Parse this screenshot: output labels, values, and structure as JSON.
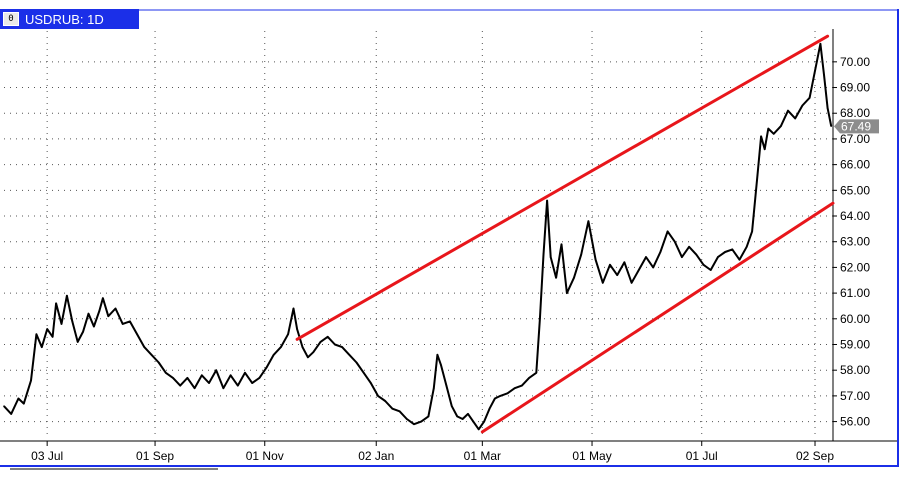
{
  "window": {
    "symbol_label": "USDRUB: 1D",
    "icon_glyph": "0"
  },
  "colors": {
    "title_bar": "#1b2fe8",
    "price_line": "#000000",
    "channel": "#e8161b",
    "last_tag": "#8c8c8c",
    "border": "#1b2fe8"
  },
  "chart_data": {
    "type": "line",
    "title": "USDRUB: 1D",
    "last_price_label": "67.49",
    "xlabel": "",
    "ylabel": "",
    "ylim": [
      55.4,
      71.2
    ],
    "xlim": [
      "2015-06-09",
      "2016-09-12"
    ],
    "y_ticks": [
      "56.00",
      "57.00",
      "58.00",
      "59.00",
      "60.00",
      "61.00",
      "62.00",
      "63.00",
      "64.00",
      "65.00",
      "66.00",
      "67.00",
      "68.00",
      "69.00",
      "70.00"
    ],
    "x_ticks": [
      {
        "label": "03 Jul",
        "date": "2015-07-03"
      },
      {
        "label": "01 Sep",
        "date": "2015-09-01"
      },
      {
        "label": "01 Nov",
        "date": "2015-11-01"
      },
      {
        "label": "02 Jan",
        "date": "2016-01-02"
      },
      {
        "label": "01 Mar",
        "date": "2016-03-01"
      },
      {
        "label": "01 May",
        "date": "2016-05-01"
      },
      {
        "label": "01 Jul",
        "date": "2016-07-01"
      },
      {
        "label": "02 Sep",
        "date": "2016-09-02"
      }
    ],
    "grid": true,
    "series": [
      {
        "points": [
          [
            "2015-06-09",
            56.6
          ],
          [
            "2015-06-13",
            56.3
          ],
          [
            "2015-06-17",
            56.9
          ],
          [
            "2015-06-20",
            56.7
          ],
          [
            "2015-06-24",
            57.6
          ],
          [
            "2015-06-27",
            59.4
          ],
          [
            "2015-06-30",
            58.9
          ],
          [
            "2015-07-03",
            59.6
          ],
          [
            "2015-07-06",
            59.3
          ],
          [
            "2015-07-08",
            60.6
          ],
          [
            "2015-07-11",
            59.8
          ],
          [
            "2015-07-14",
            60.9
          ],
          [
            "2015-07-17",
            59.9
          ],
          [
            "2015-07-20",
            59.1
          ],
          [
            "2015-07-23",
            59.5
          ],
          [
            "2015-07-26",
            60.2
          ],
          [
            "2015-07-29",
            59.7
          ],
          [
            "2015-08-01",
            60.3
          ],
          [
            "2015-08-03",
            60.8
          ],
          [
            "2015-08-06",
            60.1
          ],
          [
            "2015-08-10",
            60.4
          ],
          [
            "2015-08-14",
            59.8
          ],
          [
            "2015-08-18",
            59.9
          ],
          [
            "2015-08-22",
            59.4
          ],
          [
            "2015-08-26",
            58.9
          ],
          [
            "2015-08-30",
            58.6
          ],
          [
            "2015-09-03",
            58.3
          ],
          [
            "2015-09-07",
            57.9
          ],
          [
            "2015-09-11",
            57.7
          ],
          [
            "2015-09-15",
            57.4
          ],
          [
            "2015-09-19",
            57.7
          ],
          [
            "2015-09-23",
            57.3
          ],
          [
            "2015-09-27",
            57.8
          ],
          [
            "2015-10-01",
            57.5
          ],
          [
            "2015-10-05",
            58.0
          ],
          [
            "2015-10-09",
            57.3
          ],
          [
            "2015-10-13",
            57.8
          ],
          [
            "2015-10-17",
            57.4
          ],
          [
            "2015-10-21",
            57.9
          ],
          [
            "2015-10-25",
            57.5
          ],
          [
            "2015-10-29",
            57.7
          ],
          [
            "2015-11-02",
            58.1
          ],
          [
            "2015-11-06",
            58.6
          ],
          [
            "2015-11-10",
            58.9
          ],
          [
            "2015-11-14",
            59.4
          ],
          [
            "2015-11-17",
            60.4
          ],
          [
            "2015-11-19",
            59.6
          ],
          [
            "2015-11-22",
            58.9
          ],
          [
            "2015-11-25",
            58.5
          ],
          [
            "2015-11-28",
            58.7
          ],
          [
            "2015-12-02",
            59.1
          ],
          [
            "2015-12-06",
            59.3
          ],
          [
            "2015-12-10",
            59.0
          ],
          [
            "2015-12-14",
            58.9
          ],
          [
            "2015-12-18",
            58.6
          ],
          [
            "2015-12-22",
            58.3
          ],
          [
            "2015-12-26",
            57.9
          ],
          [
            "2015-12-30",
            57.5
          ],
          [
            "2016-01-03",
            57.0
          ],
          [
            "2016-01-07",
            56.8
          ],
          [
            "2016-01-11",
            56.5
          ],
          [
            "2016-01-15",
            56.4
          ],
          [
            "2016-01-19",
            56.1
          ],
          [
            "2016-01-23",
            55.9
          ],
          [
            "2016-01-27",
            56.0
          ],
          [
            "2016-01-31",
            56.2
          ],
          [
            "2016-02-03",
            57.3
          ],
          [
            "2016-02-05",
            58.6
          ],
          [
            "2016-02-07",
            58.2
          ],
          [
            "2016-02-10",
            57.4
          ],
          [
            "2016-02-13",
            56.6
          ],
          [
            "2016-02-16",
            56.2
          ],
          [
            "2016-02-19",
            56.1
          ],
          [
            "2016-02-22",
            56.3
          ],
          [
            "2016-02-25",
            56.0
          ],
          [
            "2016-02-28",
            55.7
          ],
          [
            "2016-03-02",
            56.0
          ],
          [
            "2016-03-05",
            56.5
          ],
          [
            "2016-03-08",
            56.9
          ],
          [
            "2016-03-11",
            57.0
          ],
          [
            "2016-03-15",
            57.1
          ],
          [
            "2016-03-19",
            57.3
          ],
          [
            "2016-03-23",
            57.4
          ],
          [
            "2016-03-27",
            57.7
          ],
          [
            "2016-03-31",
            57.9
          ],
          [
            "2016-04-02",
            60.0
          ],
          [
            "2016-04-04",
            62.5
          ],
          [
            "2016-04-06",
            64.6
          ],
          [
            "2016-04-08",
            62.4
          ],
          [
            "2016-04-11",
            61.6
          ],
          [
            "2016-04-14",
            62.9
          ],
          [
            "2016-04-17",
            61.0
          ],
          [
            "2016-04-21",
            61.6
          ],
          [
            "2016-04-25",
            62.5
          ],
          [
            "2016-04-29",
            63.8
          ],
          [
            "2016-05-03",
            62.3
          ],
          [
            "2016-05-07",
            61.4
          ],
          [
            "2016-05-11",
            62.1
          ],
          [
            "2016-05-15",
            61.7
          ],
          [
            "2016-05-19",
            62.2
          ],
          [
            "2016-05-23",
            61.4
          ],
          [
            "2016-05-27",
            61.9
          ],
          [
            "2016-05-31",
            62.4
          ],
          [
            "2016-06-04",
            62.0
          ],
          [
            "2016-06-08",
            62.6
          ],
          [
            "2016-06-12",
            63.4
          ],
          [
            "2016-06-16",
            63.0
          ],
          [
            "2016-06-20",
            62.4
          ],
          [
            "2016-06-24",
            62.8
          ],
          [
            "2016-06-28",
            62.5
          ],
          [
            "2016-07-02",
            62.1
          ],
          [
            "2016-07-06",
            61.9
          ],
          [
            "2016-07-10",
            62.4
          ],
          [
            "2016-07-14",
            62.6
          ],
          [
            "2016-07-18",
            62.7
          ],
          [
            "2016-07-22",
            62.3
          ],
          [
            "2016-07-26",
            62.8
          ],
          [
            "2016-07-29",
            63.4
          ],
          [
            "2016-08-01",
            65.6
          ],
          [
            "2016-08-03",
            67.1
          ],
          [
            "2016-08-05",
            66.6
          ],
          [
            "2016-08-07",
            67.4
          ],
          [
            "2016-08-10",
            67.2
          ],
          [
            "2016-08-14",
            67.5
          ],
          [
            "2016-08-18",
            68.1
          ],
          [
            "2016-08-22",
            67.8
          ],
          [
            "2016-08-26",
            68.3
          ],
          [
            "2016-08-30",
            68.6
          ],
          [
            "2016-09-03",
            70.0
          ],
          [
            "2016-09-05",
            70.7
          ],
          [
            "2016-09-07",
            69.5
          ],
          [
            "2016-09-09",
            68.2
          ],
          [
            "2016-09-11",
            67.5
          ]
        ]
      }
    ],
    "trendlines": [
      {
        "from": [
          "2015-11-19",
          59.2
        ],
        "to": [
          "2016-09-09",
          71.0
        ]
      },
      {
        "from": [
          "2016-03-01",
          55.6
        ],
        "to": [
          "2016-09-12",
          64.5
        ]
      }
    ]
  }
}
